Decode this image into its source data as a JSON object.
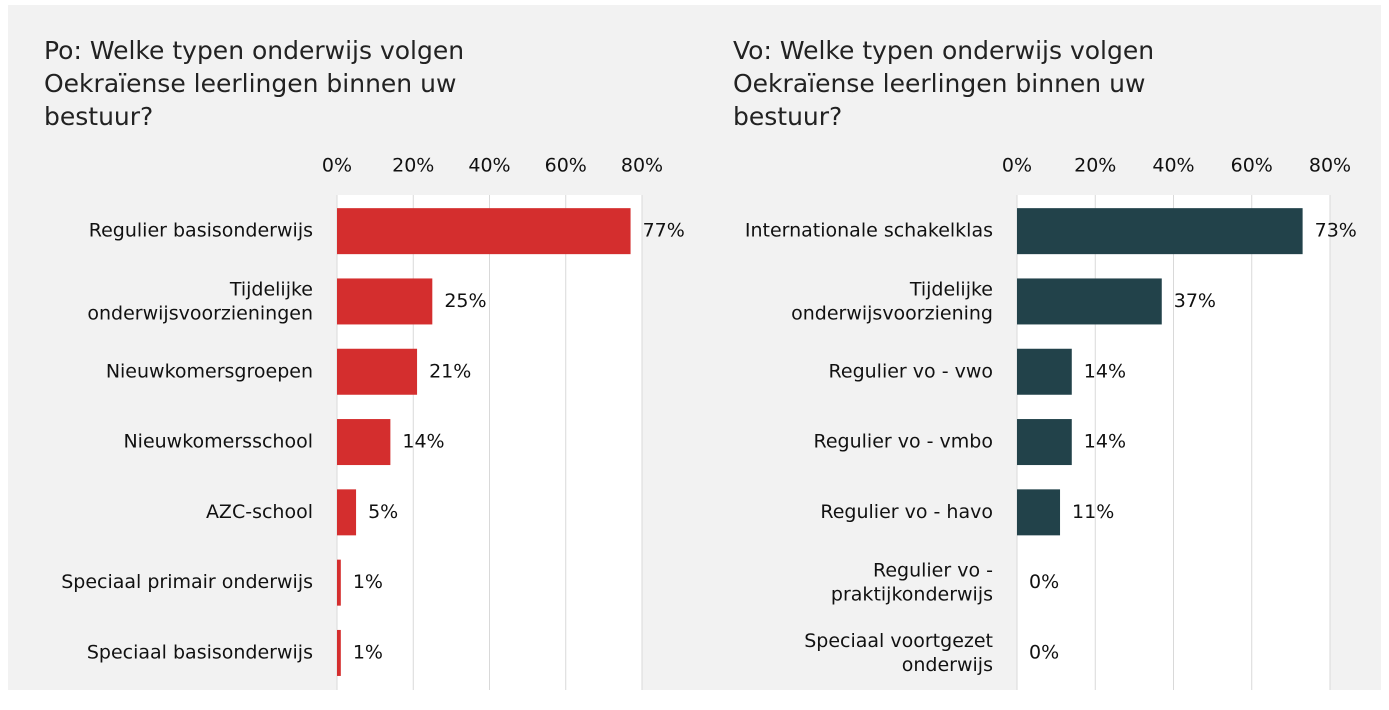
{
  "chart_data": [
    {
      "type": "bar",
      "orientation": "horizontal",
      "title": "Po: Welke typen onderwijs volgen\nOekraïense leerlingen binnen uw\nbestuur?",
      "categories": [
        "Regulier basisonderwijs",
        "Tijdelijke\nonderwijsvoorzieningen",
        "Nieuwkomersgroepen",
        "Nieuwkomersschool",
        "AZC-school",
        "Speciaal primair onderwijs",
        "Speciaal basisonderwijs"
      ],
      "values": [
        77,
        25,
        21,
        14,
        5,
        1,
        1
      ],
      "value_labels": [
        "77%",
        "25%",
        "21%",
        "14%",
        "5%",
        "1%",
        "1%"
      ],
      "color": "#d42e2e",
      "xlim": [
        0,
        80
      ],
      "xticks": [
        {
          "value": 0,
          "label": "0%"
        },
        {
          "value": 20,
          "label": "20%"
        },
        {
          "value": 40,
          "label": "40%"
        },
        {
          "value": 60,
          "label": "60%"
        },
        {
          "value": 80,
          "label": "80%"
        }
      ],
      "grid": true
    },
    {
      "type": "bar",
      "orientation": "horizontal",
      "title": "Vo: Welke typen onderwijs volgen\nOekraïense leerlingen binnen uw\nbestuur?",
      "categories": [
        "Internationale schakelklas",
        "Tijdelijke\nonderwijsvoorziening",
        "Regulier vo - vwo",
        "Regulier vo - vmbo",
        "Regulier vo - havo",
        "Regulier vo -\npraktijkonderwijs",
        "Speciaal voortgezet\nonderwijs"
      ],
      "values": [
        73,
        37,
        14,
        14,
        11,
        0,
        0
      ],
      "value_labels": [
        "73%",
        "37%",
        "14%",
        "14%",
        "11%",
        "0%",
        "0%"
      ],
      "color": "#22424a",
      "xlim": [
        0,
        80
      ],
      "xticks": [
        {
          "value": 0,
          "label": "0%"
        },
        {
          "value": 20,
          "label": "20%"
        },
        {
          "value": 40,
          "label": "40%"
        },
        {
          "value": 60,
          "label": "60%"
        },
        {
          "value": 80,
          "label": "80%"
        }
      ],
      "grid": true
    }
  ]
}
